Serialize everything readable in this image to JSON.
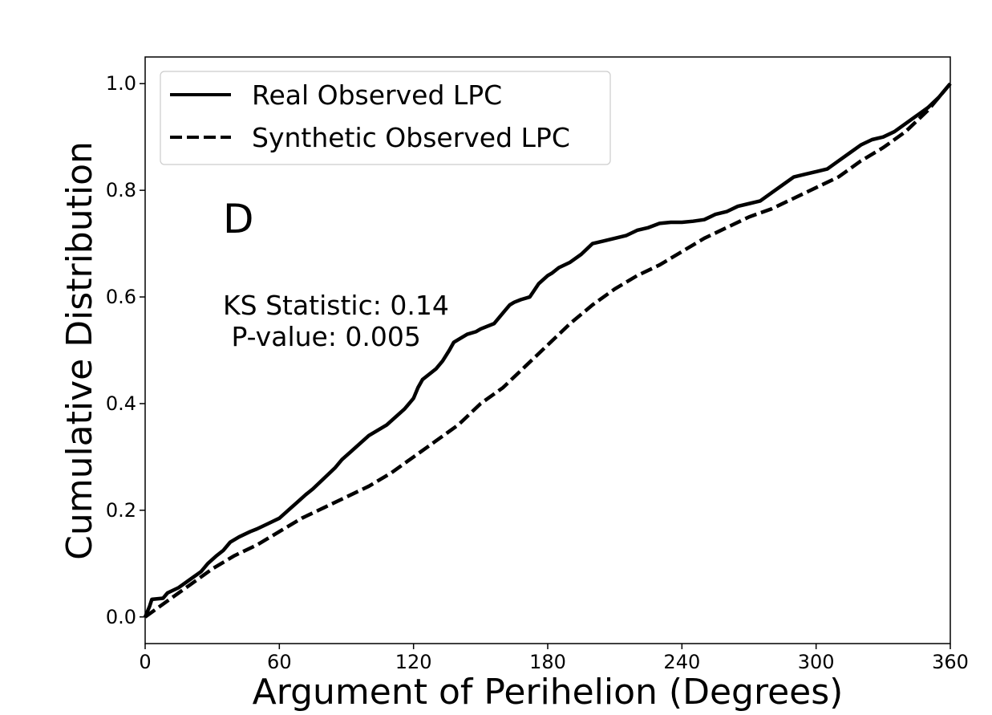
{
  "chart_data": {
    "type": "line",
    "xlabel": "Argument of Perihelion (Degrees)",
    "ylabel": "Cumulative Distribution",
    "xlim": [
      0,
      360
    ],
    "ylim": [
      -0.05,
      1.05
    ],
    "xticks": [
      0,
      60,
      120,
      180,
      240,
      300,
      360
    ],
    "yticks": [
      "0.0",
      "0.2",
      "0.4",
      "0.6",
      "0.8",
      "1.0"
    ],
    "grid": false,
    "legend_position": "top-left",
    "panel_letter": "D",
    "annotation": {
      "line1": "KS Statistic: 0.14",
      "line2": " P-value: 0.005"
    },
    "series": [
      {
        "name": "Real Observed LPC",
        "style": "solid",
        "x": [
          0,
          2,
          3,
          8,
          10,
          15,
          20,
          25,
          28,
          32,
          35,
          38,
          42,
          47,
          50,
          55,
          60,
          64,
          68,
          72,
          75,
          80,
          85,
          88,
          92,
          96,
          100,
          104,
          108,
          112,
          116,
          120,
          122,
          124,
          127,
          130,
          133,
          136,
          138,
          140,
          144,
          148,
          150,
          156,
          160,
          163,
          165,
          168,
          172,
          176,
          180,
          182,
          185,
          190,
          195,
          200,
          205,
          210,
          215,
          220,
          225,
          230,
          235,
          240,
          245,
          250,
          255,
          260,
          265,
          270,
          275,
          280,
          285,
          290,
          295,
          300,
          305,
          310,
          315,
          320,
          325,
          330,
          335,
          340,
          345,
          350,
          355,
          360
        ],
        "y": [
          0,
          0.02,
          0.033,
          0.035,
          0.045,
          0.055,
          0.07,
          0.085,
          0.1,
          0.115,
          0.125,
          0.14,
          0.15,
          0.16,
          0.165,
          0.175,
          0.185,
          0.2,
          0.215,
          0.23,
          0.24,
          0.26,
          0.28,
          0.295,
          0.31,
          0.325,
          0.34,
          0.35,
          0.36,
          0.375,
          0.39,
          0.41,
          0.43,
          0.445,
          0.455,
          0.465,
          0.48,
          0.5,
          0.515,
          0.52,
          0.53,
          0.535,
          0.54,
          0.55,
          0.57,
          0.585,
          0.59,
          0.595,
          0.6,
          0.625,
          0.64,
          0.645,
          0.655,
          0.665,
          0.68,
          0.7,
          0.705,
          0.71,
          0.715,
          0.725,
          0.73,
          0.738,
          0.74,
          0.74,
          0.742,
          0.745,
          0.755,
          0.76,
          0.77,
          0.775,
          0.78,
          0.795,
          0.81,
          0.825,
          0.83,
          0.835,
          0.84,
          0.855,
          0.87,
          0.885,
          0.895,
          0.9,
          0.91,
          0.925,
          0.94,
          0.955,
          0.975,
          1.0
        ]
      },
      {
        "name": "Synthetic Observed LPC",
        "style": "dashed",
        "x": [
          0,
          5,
          10,
          20,
          30,
          40,
          50,
          60,
          70,
          80,
          90,
          100,
          110,
          120,
          130,
          135,
          140,
          145,
          150,
          160,
          170,
          180,
          190,
          200,
          210,
          220,
          230,
          240,
          250,
          260,
          270,
          280,
          290,
          300,
          310,
          320,
          330,
          340,
          350,
          360
        ],
        "y": [
          0,
          0.015,
          0.03,
          0.06,
          0.09,
          0.115,
          0.135,
          0.16,
          0.185,
          0.205,
          0.225,
          0.245,
          0.27,
          0.3,
          0.33,
          0.345,
          0.36,
          0.38,
          0.4,
          0.43,
          0.47,
          0.51,
          0.55,
          0.585,
          0.615,
          0.64,
          0.66,
          0.685,
          0.71,
          0.73,
          0.75,
          0.765,
          0.785,
          0.805,
          0.825,
          0.855,
          0.88,
          0.91,
          0.95,
          1.0
        ]
      }
    ]
  }
}
